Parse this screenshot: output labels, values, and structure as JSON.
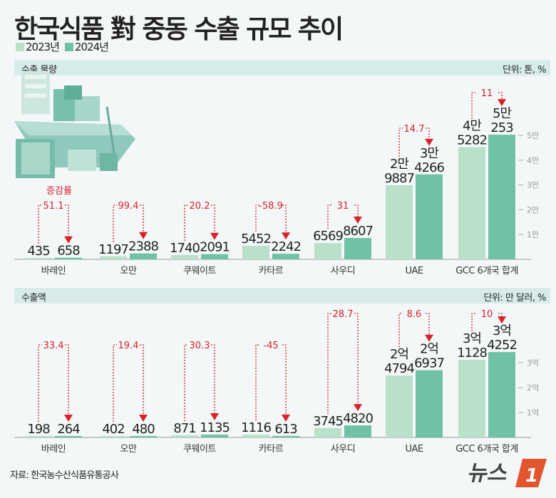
{
  "title": "한국식품 對 중동 수출 규모 추이",
  "legend": {
    "y2023": "2023년",
    "y2024": "2024년"
  },
  "colors": {
    "y2023": "#b9e0c9",
    "y2024": "#6fc2a3",
    "change": "#d8222a",
    "strip": "#d7ecea"
  },
  "change_label": "증감률",
  "source": "자료: 한국농수산식품유통공사",
  "logo_text": "뉴스1",
  "chart_data": [
    {
      "type": "bar",
      "section_title": "수출 물량",
      "unit_label": "단위: 톤, %",
      "categories": [
        "바레인",
        "오만",
        "쿠웨이트",
        "카타르",
        "사우디",
        "UAE",
        "GCC 6개국 합계"
      ],
      "series": [
        {
          "name": "2023년",
          "values": [
            435,
            1197,
            1740,
            5452,
            6569,
            29887,
            45282
          ],
          "labels": [
            [
              "435"
            ],
            [
              "1197"
            ],
            [
              "1740"
            ],
            [
              "5452"
            ],
            [
              "6569"
            ],
            [
              "2만",
              "9887"
            ],
            [
              "4만",
              "5282"
            ]
          ]
        },
        {
          "name": "2024년",
          "values": [
            658,
            2388,
            2091,
            2242,
            8607,
            34266,
            50253
          ],
          "labels": [
            [
              "658"
            ],
            [
              "2388"
            ],
            [
              "2091"
            ],
            [
              "2242"
            ],
            [
              "8607"
            ],
            [
              "3만",
              "4266"
            ],
            [
              "5만",
              "253"
            ]
          ]
        }
      ],
      "change": [
        "51.1",
        "99.4",
        "20.2",
        "-58.9",
        "31",
        "14.7",
        "11"
      ],
      "yticks": [
        {
          "v": 10000,
          "label": "1만"
        },
        {
          "v": 20000,
          "label": "2만"
        },
        {
          "v": 30000,
          "label": "3만"
        },
        {
          "v": 40000,
          "label": "4만"
        },
        {
          "v": 50000,
          "label": "5만"
        }
      ],
      "ylim": [
        0,
        50000
      ]
    },
    {
      "type": "bar",
      "section_title": "수출액",
      "unit_label": "단위: 만 달러, %",
      "categories": [
        "바레인",
        "오만",
        "쿠웨이트",
        "카타르",
        "사우디",
        "UAE",
        "GCC 6개국 합계"
      ],
      "series": [
        {
          "name": "2023년",
          "values": [
            198,
            402,
            871,
            1116,
            3745,
            24794,
            31128
          ],
          "labels": [
            [
              "198"
            ],
            [
              "402"
            ],
            [
              "871"
            ],
            [
              "1116"
            ],
            [
              "3745"
            ],
            [
              "2억",
              "4794"
            ],
            [
              "3억",
              "1128"
            ]
          ]
        },
        {
          "name": "2024년",
          "values": [
            264,
            480,
            1135,
            613,
            4820,
            26937,
            34252
          ],
          "labels": [
            [
              "264"
            ],
            [
              "480"
            ],
            [
              "1135"
            ],
            [
              "613"
            ],
            [
              "4820"
            ],
            [
              "2억",
              "6937"
            ],
            [
              "3억",
              "4252"
            ]
          ]
        }
      ],
      "change": [
        "33.4",
        "19.4",
        "30.3",
        "-45",
        "28.7",
        "8.6",
        "10"
      ],
      "yticks": [
        {
          "v": 10000,
          "label": "1억"
        },
        {
          "v": 20000,
          "label": "2억"
        },
        {
          "v": 30000,
          "label": "3억"
        }
      ],
      "ylim": [
        0,
        30000
      ]
    }
  ]
}
